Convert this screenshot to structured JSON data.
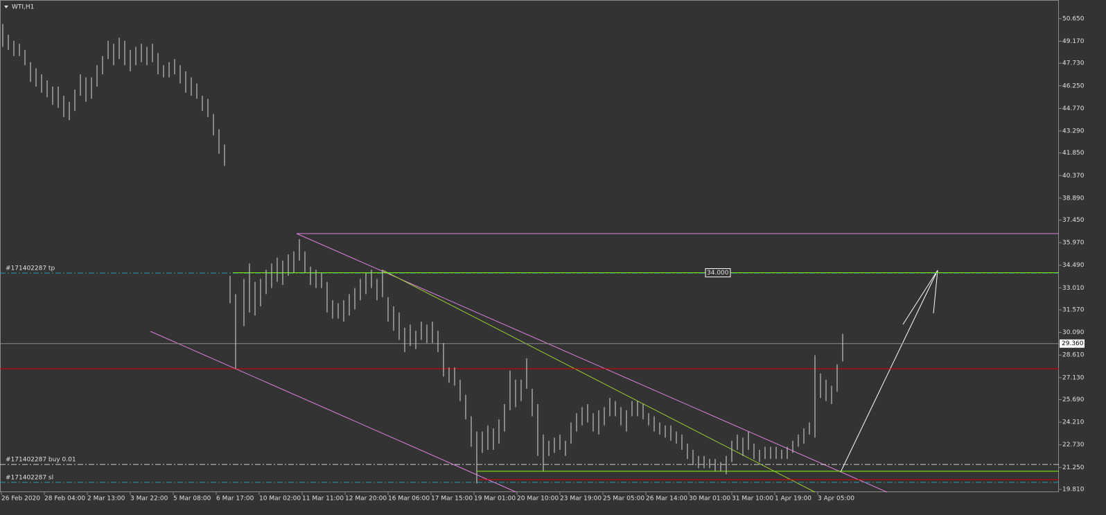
{
  "chart_data": {
    "type": "ohlc",
    "title": "WTI,H1",
    "xlim": [
      0,
      764
    ],
    "ylim": [
      19.63,
      51.87
    ],
    "xticks": [
      {
        "value": 1,
        "label": "26 Feb 2020"
      },
      {
        "value": 32,
        "label": "28 Feb 04:00"
      },
      {
        "value": 63,
        "label": "2 Mar 13:00"
      },
      {
        "value": 94,
        "label": "3 Mar 22:00"
      },
      {
        "value": 125,
        "label": "5 Mar 08:00"
      },
      {
        "value": 156,
        "label": "6 Mar 17:00"
      },
      {
        "value": 187,
        "label": "10 Mar 02:00"
      },
      {
        "value": 218,
        "label": "11 Mar 11:00"
      },
      {
        "value": 249,
        "label": "12 Mar 20:00"
      },
      {
        "value": 280,
        "label": "16 Mar 06:00"
      },
      {
        "value": 311,
        "label": "17 Mar 15:00"
      },
      {
        "value": 342,
        "label": "19 Mar 01:00"
      },
      {
        "value": 373,
        "label": "20 Mar 10:00"
      },
      {
        "value": 404,
        "label": "23 Mar 19:00"
      },
      {
        "value": 435,
        "label": "25 Mar 05:00"
      },
      {
        "value": 466,
        "label": "26 Mar 14:00"
      },
      {
        "value": 497,
        "label": "30 Mar 01:00"
      },
      {
        "value": 528,
        "label": "31 Mar 10:00"
      },
      {
        "value": 559,
        "label": "1 Apr 19:00"
      },
      {
        "value": 590,
        "label": "3 Apr 05:00"
      }
    ],
    "yticks": [
      {
        "value": 50.65,
        "label": "50.650"
      },
      {
        "value": 49.17,
        "label": "49.170"
      },
      {
        "value": 47.73,
        "label": "47.730"
      },
      {
        "value": 46.25,
        "label": "46.250"
      },
      {
        "value": 44.77,
        "label": "44.770"
      },
      {
        "value": 43.29,
        "label": "43.290"
      },
      {
        "value": 41.85,
        "label": "41.850"
      },
      {
        "value": 40.37,
        "label": "40.370"
      },
      {
        "value": 38.89,
        "label": "38.890"
      },
      {
        "value": 37.45,
        "label": "37.450"
      },
      {
        "value": 35.97,
        "label": "35.970"
      },
      {
        "value": 34.49,
        "label": "34.490"
      },
      {
        "value": 33.01,
        "label": "33.010"
      },
      {
        "value": 31.57,
        "label": "31.570"
      },
      {
        "value": 30.09,
        "label": "30.090"
      },
      {
        "value": 28.61,
        "label": "28.610"
      },
      {
        "value": 27.13,
        "label": "27.130"
      },
      {
        "value": 25.69,
        "label": "25.690"
      },
      {
        "value": 24.21,
        "label": "24.210"
      },
      {
        "value": 22.73,
        "label": "22.730"
      },
      {
        "value": 21.25,
        "label": "21.250"
      },
      {
        "value": 19.81,
        "label": "19.810"
      }
    ],
    "color": "#c0c0c0",
    "x": [
      2,
      6,
      10,
      14,
      18,
      22,
      26,
      30,
      34,
      38,
      42,
      46,
      50,
      54,
      58,
      62,
      66,
      70,
      74,
      78,
      82,
      86,
      90,
      94,
      98,
      102,
      106,
      110,
      114,
      118,
      122,
      126,
      130,
      134,
      138,
      142,
      146,
      150,
      154,
      158,
      162,
      166,
      170,
      176,
      180,
      184,
      188,
      192,
      196,
      200,
      204,
      208,
      212,
      216,
      220,
      224,
      228,
      232,
      236,
      240,
      244,
      248,
      252,
      256,
      260,
      264,
      268,
      272,
      276,
      280,
      284,
      288,
      292,
      296,
      300,
      304,
      308,
      312,
      316,
      320,
      324,
      328,
      332,
      336,
      340,
      344,
      348,
      352,
      356,
      360,
      364,
      368,
      372,
      376,
      380,
      384,
      388,
      392,
      396,
      400,
      404,
      408,
      412,
      416,
      420,
      424,
      428,
      432,
      436,
      440,
      444,
      448,
      452,
      456,
      460,
      464,
      468,
      472,
      476,
      480,
      484,
      488,
      492,
      496,
      500,
      504,
      508,
      512,
      516,
      520,
      524,
      528,
      532,
      536,
      540,
      544,
      548,
      552,
      556,
      560,
      564,
      568,
      572,
      576,
      580,
      584,
      588,
      592,
      596,
      600,
      604,
      608
    ],
    "high": [
      50.3,
      49.6,
      49.2,
      49.0,
      48.6,
      47.8,
      47.4,
      47.0,
      46.6,
      46.2,
      46.2,
      45.6,
      45.2,
      46.0,
      47.0,
      46.8,
      46.8,
      47.6,
      48.2,
      49.2,
      49.0,
      49.4,
      49.2,
      48.6,
      48.8,
      49.0,
      48.8,
      49.0,
      48.4,
      47.6,
      47.8,
      48.0,
      47.6,
      47.2,
      46.8,
      46.4,
      45.6,
      45.4,
      44.4,
      43.4,
      42.4,
      33.8,
      32.6,
      33.6,
      34.6,
      33.4,
      33.6,
      34.2,
      34.6,
      35.0,
      34.8,
      35.2,
      35.4,
      36.2,
      35.4,
      34.4,
      34.2,
      34.0,
      33.4,
      32.2,
      32.0,
      32.2,
      32.6,
      33.0,
      33.6,
      34.0,
      34.2,
      33.6,
      34.2,
      32.4,
      31.8,
      31.4,
      30.4,
      30.6,
      30.2,
      30.8,
      30.6,
      30.8,
      30.2,
      29.4,
      27.8,
      27.8,
      27.0,
      26.0,
      24.6,
      23.6,
      23.6,
      24.0,
      23.8,
      24.4,
      25.4,
      27.6,
      27.0,
      27.0,
      28.4,
      26.4,
      25.4,
      23.4,
      23.0,
      23.2,
      23.4,
      23.0,
      24.2,
      24.8,
      25.2,
      25.4,
      24.8,
      25.0,
      25.2,
      25.8,
      25.6,
      25.2,
      25.0,
      25.6,
      25.6,
      25.4,
      24.8,
      24.6,
      24.2,
      24.0,
      24.0,
      23.6,
      23.4,
      22.8,
      22.4,
      22.0,
      22.0,
      21.8,
      21.8,
      21.6,
      22.0,
      23.0,
      23.4,
      23.2,
      23.6,
      22.8,
      22.4,
      22.6,
      22.6,
      22.6,
      22.4,
      22.6,
      23.0,
      23.4,
      23.8,
      24.2,
      28.6,
      27.4,
      27.0,
      26.6,
      28.0,
      30.0
    ],
    "low": [
      48.8,
      48.6,
      48.2,
      48.2,
      47.6,
      46.5,
      46.2,
      45.8,
      45.5,
      45.0,
      44.8,
      44.2,
      44.0,
      44.6,
      45.6,
      45.2,
      45.4,
      46.2,
      47.0,
      48.0,
      47.6,
      48.0,
      47.6,
      47.2,
      47.6,
      47.8,
      47.6,
      47.8,
      47.0,
      46.8,
      46.8,
      47.0,
      46.4,
      45.8,
      45.6,
      45.4,
      44.6,
      44.2,
      43.0,
      41.8,
      41.0,
      32.0,
      27.7,
      30.5,
      31.4,
      31.2,
      31.8,
      32.6,
      33.0,
      33.4,
      33.2,
      33.8,
      34.0,
      34.8,
      34.0,
      33.2,
      33.0,
      33.0,
      31.4,
      31.0,
      31.0,
      30.8,
      31.2,
      31.6,
      32.2,
      32.6,
      33.0,
      32.2,
      32.4,
      30.8,
      30.2,
      29.6,
      28.8,
      29.2,
      29.0,
      29.6,
      29.4,
      29.4,
      28.8,
      27.2,
      26.8,
      26.6,
      25.6,
      24.4,
      22.6,
      20.2,
      22.2,
      22.4,
      22.4,
      22.8,
      23.6,
      25.0,
      25.2,
      25.6,
      26.4,
      24.6,
      22.0,
      21.0,
      22.0,
      22.2,
      22.4,
      22.0,
      22.8,
      23.6,
      24.0,
      24.2,
      23.6,
      23.4,
      24.0,
      24.6,
      24.6,
      24.0,
      23.6,
      24.6,
      24.6,
      24.4,
      24.0,
      23.6,
      23.4,
      23.2,
      23.0,
      22.8,
      22.4,
      21.8,
      21.4,
      21.2,
      21.2,
      21.2,
      21.0,
      21.0,
      20.8,
      21.6,
      22.4,
      22.0,
      22.4,
      21.8,
      21.6,
      21.8,
      21.8,
      21.8,
      21.8,
      21.8,
      22.2,
      22.6,
      22.8,
      23.4,
      23.2,
      25.8,
      25.6,
      25.4,
      26.2,
      28.2
    ],
    "price_line": {
      "value": 29.36,
      "label": "29.360",
      "color": "#8a8a8a"
    },
    "levels": [
      {
        "value": 34.0,
        "label": "34.000",
        "color": "#7fff00",
        "start": 168
      },
      {
        "value": 27.71,
        "color": "#e00000",
        "start": 0
      },
      {
        "value": 21.0,
        "color": "#7fff00",
        "start": 344
      },
      {
        "value": 20.45,
        "color": "#e00000",
        "start": 345
      }
    ],
    "order_lines": [
      {
        "name": "#171402287 tp",
        "value": 33.98,
        "color": "#2a9bb0"
      },
      {
        "name": "#171402287 buy 0.01",
        "value": 21.44,
        "color": "#cfcfcf"
      },
      {
        "name": "#171402287 sl",
        "value": 20.27,
        "color": "#2a9bb0"
      }
    ]
  }
}
